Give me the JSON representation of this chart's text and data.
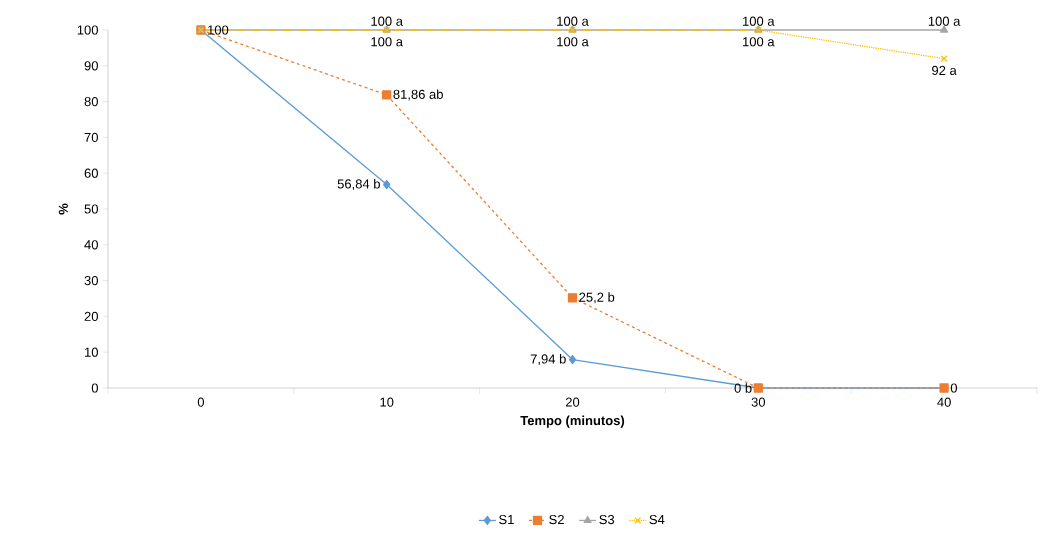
{
  "chart_data": {
    "type": "line",
    "xlabel": "Tempo (minutos)",
    "ylabel": "%",
    "categories": [
      "0",
      "10",
      "20",
      "30",
      "40"
    ],
    "ylim": [
      0,
      100
    ],
    "yticks": [
      0,
      10,
      20,
      30,
      40,
      50,
      60,
      70,
      80,
      90,
      100
    ],
    "legend": "bottom",
    "grid": false,
    "series": [
      {
        "name": "S1",
        "color": "#5b9bd5",
        "marker": "diamond",
        "line_style": "solid",
        "values": [
          100,
          56.84,
          7.94,
          0,
          0
        ],
        "value_labels": [
          null,
          "56,84 b",
          "7,94 b",
          "0 b",
          null
        ]
      },
      {
        "name": "S2",
        "color": "#ed7d31",
        "marker": "square",
        "line_style": "dashed",
        "values": [
          100,
          81.86,
          25.2,
          0,
          0
        ],
        "value_labels": [
          "100",
          "81,86 ab",
          "25,2 b",
          null,
          "0"
        ]
      },
      {
        "name": "S3",
        "color": "#a5a5a5",
        "marker": "triangle",
        "line_style": "solid",
        "values": [
          100,
          100,
          100,
          100,
          100
        ],
        "value_labels": [
          null,
          "100 a",
          "100 a",
          "100 a",
          "100 a"
        ]
      },
      {
        "name": "S4",
        "color": "#ffc000",
        "marker": "cross",
        "line_style": "dotted",
        "values": [
          100,
          100,
          100,
          100,
          92
        ],
        "value_labels": [
          null,
          "100 a",
          "100 a",
          "100 a",
          "92 a"
        ]
      }
    ]
  }
}
